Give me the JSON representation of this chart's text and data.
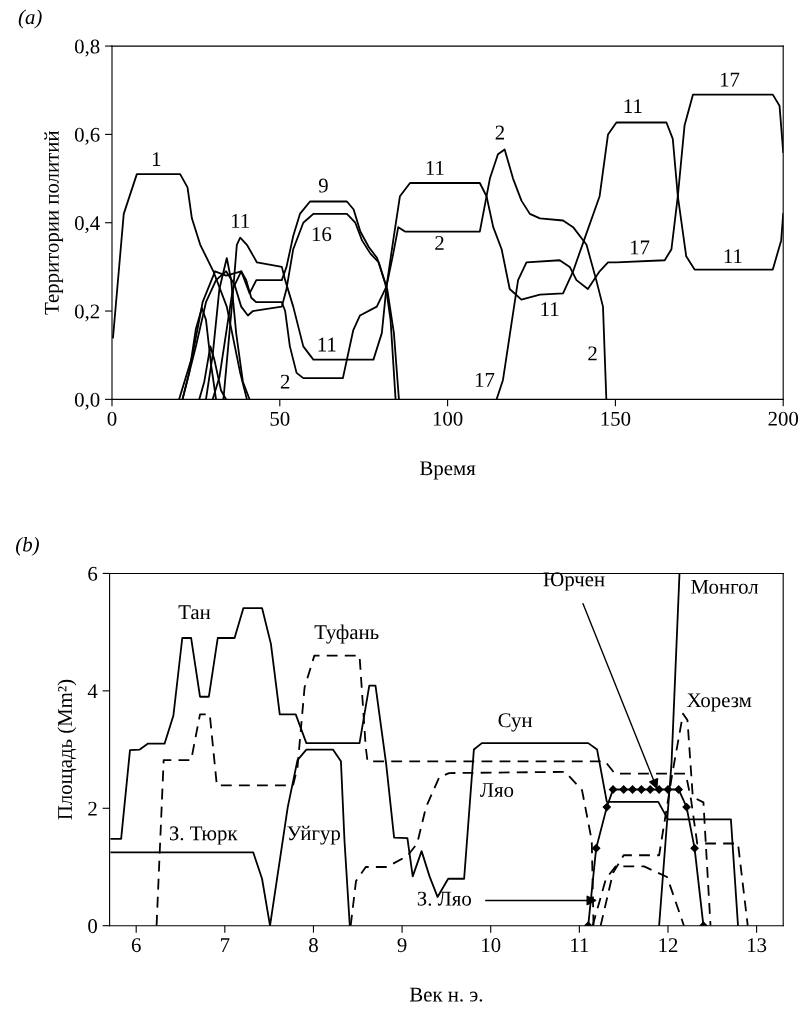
{
  "chart_data": [
    {
      "type": "line",
      "title": "(a)",
      "xlabel": "Время",
      "ylabel": "Территории политий",
      "color": "#000000",
      "line_style": "solid",
      "xlim": [
        0,
        200
      ],
      "ylim": [
        0,
        0.8
      ],
      "xticks": [
        0,
        50,
        100,
        150,
        200
      ],
      "yticks": [
        {
          "value": 0,
          "label": "0,0"
        },
        {
          "value": 0.2,
          "label": "0,2"
        },
        {
          "value": 0.4,
          "label": "0,4"
        },
        {
          "value": 0.6,
          "label": "0,6"
        },
        {
          "value": 0.8,
          "label": "0,8"
        }
      ],
      "series": [
        {
          "x": [
            0.3,
            3.5,
            7.4,
            20.3,
            22.5,
            23.8,
            26.3,
            30.2,
            34.2,
            38.2,
            40.2
          ],
          "values": [
            0.14,
            0.42,
            0.51,
            0.51,
            0.48,
            0.41,
            0.35,
            0.29,
            0.21,
            0.06,
            0
          ]
        },
        {
          "x": [
            33.2,
            35.7,
            37.2,
            38.2,
            40.2,
            43.2,
            50.6,
            51.6,
            54.0,
            57.0,
            60.0,
            77.9,
            80.4,
            81.8,
            83.8,
            85.8,
            88.8,
            109.6,
            111.6,
            113.6,
            116.1,
            118.5,
            122.0,
            127.5,
            134.4,
            137.4,
            140.4,
            145.3,
            147.8,
            150.3,
            165.2,
            167.1,
            168.6,
            171.1,
            173.6,
            196.9,
            199.4,
            200
          ],
          "values": [
            0,
            0.21,
            0.35,
            0.366,
            0.35,
            0.31,
            0.3,
            0.27,
            0.21,
            0.12,
            0.09,
            0.09,
            0.15,
            0.256,
            0.36,
            0.46,
            0.49,
            0.49,
            0.46,
            0.39,
            0.34,
            0.25,
            0.226,
            0.237,
            0.24,
            0.29,
            0.355,
            0.46,
            0.6,
            0.627,
            0.627,
            0.59,
            0.46,
            0.324,
            0.294,
            0.294,
            0.36,
            0.42
          ]
        },
        {
          "x": [
            114.6,
            116.5,
            119.0,
            121.0,
            123.5,
            133.4,
            136.4,
            138.4,
            141.8,
            145.3,
            147.8,
            150.3,
            164.7,
            166.7,
            168.6,
            170.6,
            173.1,
            196.9,
            198.9,
            200
          ],
          "values": [
            0,
            0.044,
            0.17,
            0.27,
            0.31,
            0.315,
            0.3,
            0.27,
            0.25,
            0.29,
            0.31,
            0.31,
            0.315,
            0.34,
            0.46,
            0.62,
            0.69,
            0.69,
            0.665,
            0.56
          ]
        },
        {
          "x": [
            30,
            32,
            34,
            36,
            38.5,
            40,
            41.5,
            43,
            50.6,
            51.6,
            53,
            55,
            57,
            68.8,
            71.9,
            73.9,
            78.9,
            81.8,
            83.8,
            85.3,
            87.3,
            109.6,
            112.6,
            115,
            117,
            119.5,
            122,
            124.5,
            127.5,
            134.4,
            137.4,
            141.4,
            144.3,
            146.3,
            147.3
          ],
          "values": [
            0,
            0.05,
            0.15,
            0.25,
            0.29,
            0.27,
            0.23,
            0.22,
            0.22,
            0.2,
            0.12,
            0.06,
            0.048,
            0.048,
            0.157,
            0.19,
            0.21,
            0.256,
            0.33,
            0.39,
            0.38,
            0.38,
            0.5,
            0.555,
            0.566,
            0.5,
            0.45,
            0.42,
            0.41,
            0.405,
            0.39,
            0.35,
            0.27,
            0.21,
            0
          ]
        },
        {
          "x": [
            20,
            24,
            27,
            30.7,
            34,
            38.5,
            41,
            43,
            50.6,
            52,
            54,
            56,
            59,
            70,
            72,
            74,
            76.5,
            79,
            81.5,
            83,
            84.5
          ],
          "values": [
            0,
            0.1,
            0.22,
            0.29,
            0.28,
            0.29,
            0.24,
            0.27,
            0.27,
            0.3,
            0.37,
            0.42,
            0.448,
            0.448,
            0.43,
            0.38,
            0.345,
            0.32,
            0.26,
            0.18,
            0
          ]
        },
        {
          "x": [
            21,
            25,
            28,
            31,
            34,
            36.5,
            38.5,
            40.5,
            42,
            50.6,
            52,
            54,
            57,
            60,
            70,
            72.5,
            74.5,
            77,
            79.5,
            82,
            84,
            85.5
          ],
          "values": [
            0,
            0.12,
            0.22,
            0.27,
            0.29,
            0.26,
            0.21,
            0.19,
            0.2,
            0.21,
            0.25,
            0.34,
            0.4,
            0.42,
            0.42,
            0.4,
            0.36,
            0.33,
            0.31,
            0.25,
            0.15,
            0
          ]
        },
        {
          "x": [
            21,
            23,
            25,
            26.8,
            28,
            29.5,
            31
          ],
          "values": [
            0,
            0.06,
            0.16,
            0.207,
            0.18,
            0.08,
            0
          ]
        },
        {
          "x": [
            26,
            27.5,
            29.3,
            30.5,
            32.5,
            34
          ],
          "values": [
            0,
            0.04,
            0.12,
            0.09,
            0.02,
            0
          ]
        },
        {
          "x": [
            28,
            30,
            32,
            34.2,
            35.5,
            37,
            39,
            41
          ],
          "values": [
            0,
            0.1,
            0.25,
            0.32,
            0.27,
            0.15,
            0.04,
            0
          ]
        }
      ],
      "annotations": [
        "1",
        "11",
        "9",
        "16",
        "11",
        "2",
        "11",
        "2",
        "2",
        "11",
        "17",
        "17",
        "11",
        "11",
        "2",
        "17"
      ]
    },
    {
      "type": "line",
      "title": "(b)",
      "xlabel": "Век н. э.",
      "ylabel": "Площадь (Mm²)",
      "color": "#000000",
      "xlim": [
        5.7,
        13.3
      ],
      "ylim": [
        0,
        6
      ],
      "xticks": [
        6,
        7,
        8,
        9,
        10,
        11,
        12,
        13
      ],
      "yticks": [
        0,
        2,
        4,
        6
      ],
      "series": [
        {
          "line_style": "solid",
          "x": [
            5.72,
            5.83,
            5.93,
            6.04,
            6.13,
            6.32,
            6.42,
            6.52,
            6.62,
            6.72,
            6.82,
            6.92,
            7.11,
            7.21,
            7.42,
            7.52,
            7.62,
            7.8,
            7.92,
            8.52,
            8.63,
            8.7,
            8.82,
            8.91,
            9.06,
            9.12,
            9.22,
            9.31,
            9.4,
            9.52,
            9.7,
            9.81,
            9.9,
            11.1,
            11.2,
            11.31,
            11.89,
            12.0,
            12.71,
            12.79
          ],
          "values": [
            1.48,
            1.48,
            2.99,
            3.0,
            3.1,
            3.1,
            3.58,
            4.9,
            4.9,
            3.9,
            3.9,
            4.9,
            4.9,
            5.41,
            5.41,
            4.8,
            3.6,
            3.6,
            3.11,
            3.11,
            4.09,
            4.09,
            2.76,
            1.5,
            1.49,
            0.84,
            1.27,
            0.84,
            0.49,
            0.8,
            0.8,
            3.0,
            3.11,
            3.11,
            3.0,
            2.11,
            2.11,
            1.81,
            1.81,
            0
          ]
        },
        {
          "line_style": "solid",
          "x": [
            5.72,
            7.32,
            7.42,
            7.51
          ],
          "values": [
            1.25,
            1.25,
            0.8,
            0
          ]
        },
        {
          "line_style": "solid",
          "x": [
            7.51,
            7.71,
            7.82,
            7.92,
            8.22,
            8.31,
            8.35,
            8.41
          ],
          "values": [
            0,
            2.02,
            2.82,
            3.0,
            3.0,
            2.8,
            1.45,
            0
          ]
        },
        {
          "line_style": "dashed",
          "x": [
            6.23,
            6.31,
            6.62,
            6.72,
            6.83,
            6.91,
            7.77,
            7.82,
            7.9,
            8.01,
            8.52,
            8.59,
            8.61,
            11.29,
            11.4,
            12.2,
            12.26,
            12.33,
            12.79,
            12.9
          ],
          "values": [
            0,
            2.82,
            2.82,
            3.6,
            3.6,
            2.39,
            2.39,
            2.7,
            4.06,
            4.6,
            4.6,
            3.04,
            2.8,
            2.8,
            2.59,
            2.59,
            2.15,
            1.4,
            1.4,
            0
          ]
        },
        {
          "line_style": "dashed",
          "x": [
            8.42,
            8.48,
            8.59,
            8.83,
            9.06,
            9.17,
            9.27,
            9.42,
            9.53,
            10.84,
            11.03,
            11.14,
            11.16
          ],
          "values": [
            0,
            0.76,
            1.0,
            1.0,
            1.19,
            1.4,
            2.02,
            2.53,
            2.6,
            2.62,
            2.31,
            1.45,
            0
          ]
        },
        {
          "line_style": "dashed",
          "x": [
            11.15,
            11.3,
            11.41,
            11.73,
            11.99,
            12.18
          ],
          "values": [
            0,
            0.8,
            1.01,
            1.01,
            0.83,
            0
          ]
        },
        {
          "line_style": "dashed",
          "x": [
            11.24,
            11.38,
            11.5,
            11.9,
            12.05,
            12.17,
            12.22,
            12.28,
            12.4,
            12.48
          ],
          "values": [
            0,
            0.9,
            1.2,
            1.2,
            2.6,
            3.61,
            3.5,
            2.19,
            2.1,
            0
          ]
        },
        {
          "line_style": "solid",
          "x": [
            11.9,
            12.04,
            12.13
          ],
          "values": [
            0,
            2.77,
            6.0
          ]
        },
        {
          "line_style": "solid",
          "marker": "diamond",
          "x": [
            11.1,
            11.19,
            11.31,
            11.38,
            11.5,
            11.6,
            11.7,
            11.8,
            11.9,
            12.0,
            12.12,
            12.21,
            12.3,
            12.4
          ],
          "values": [
            0,
            1.32,
            2.02,
            2.32,
            2.32,
            2.32,
            2.32,
            2.32,
            2.32,
            2.32,
            2.32,
            2.02,
            1.32,
            0
          ]
        }
      ],
      "annotations": [
        "Тан",
        "Туфань",
        "З. Тюрк",
        "Уйгур",
        "Сун",
        "Ляо",
        "Монгол",
        {
          "text": "Юрчен",
          "x": 11.88,
          "y": 2.32
        },
        "Хорезм",
        {
          "text": "З. Ляо",
          "x": 11.2,
          "y": 0.43
        }
      ]
    }
  ]
}
